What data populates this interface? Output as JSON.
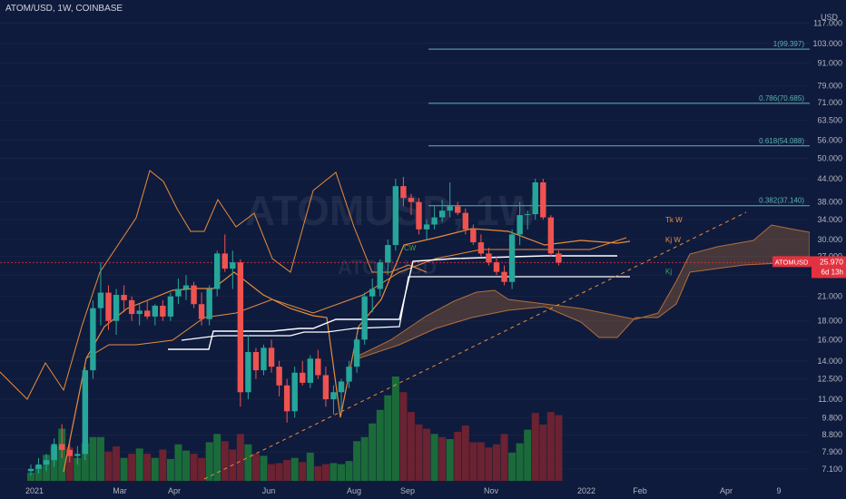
{
  "header": {
    "title": "ATOM/USD, 1W, COINBASE"
  },
  "watermark": {
    "main": "ATOMUSD, 1W",
    "sub": "ATOMUSD"
  },
  "colors": {
    "background": "#0f1b3d",
    "up": "#26a69a",
    "down": "#ef5350",
    "vol_up": "#1b6b3a",
    "vol_down": "#6b2231",
    "orange": "#e88d3a",
    "fib": "#5fb3b3",
    "white": "#ffffff",
    "cloud": "#8a5a3a",
    "price_tag": "#e2323f"
  },
  "chart_data": {
    "type": "candlestick",
    "title": "ATOM/USD, 1W, COINBASE",
    "y_scale": "log",
    "ylim": [
      6.7,
      130
    ],
    "y_ticks": [
      "7.100",
      "7.900",
      "8.800",
      "9.800",
      "11.000",
      "12.500",
      "14.000",
      "16.000",
      "18.000",
      "21.000",
      "24.000",
      "27.000",
      "30.000",
      "34.000",
      "38.000",
      "44.000",
      "50.000",
      "56.000",
      "63.500",
      "71.000",
      "79.000",
      "91.000",
      "103.000",
      "117.000"
    ],
    "x_ticks": [
      "2021",
      "Mar",
      "Apr",
      "Jun",
      "Aug",
      "Sep",
      "Nov",
      "2022",
      "Feb",
      "Apr",
      "9"
    ],
    "currency_label": "USD",
    "candles": [
      {
        "o": 7.0,
        "h": 7.3,
        "l": 6.8,
        "c": 7.1
      },
      {
        "o": 7.1,
        "h": 7.6,
        "l": 6.9,
        "c": 7.3
      },
      {
        "o": 7.3,
        "h": 7.8,
        "l": 7.0,
        "c": 7.5
      },
      {
        "o": 7.5,
        "h": 8.6,
        "l": 7.2,
        "c": 8.3
      },
      {
        "o": 8.3,
        "h": 9.4,
        "l": 7.6,
        "c": 8.0
      },
      {
        "o": 8.0,
        "h": 8.4,
        "l": 7.4,
        "c": 7.7
      },
      {
        "o": 7.7,
        "h": 8.2,
        "l": 7.3,
        "c": 7.8
      },
      {
        "o": 7.8,
        "h": 13.5,
        "l": 7.5,
        "c": 13.2
      },
      {
        "o": 13.2,
        "h": 20.5,
        "l": 12.5,
        "c": 19.5
      },
      {
        "o": 19.5,
        "h": 26.0,
        "l": 17.5,
        "c": 21.5
      },
      {
        "o": 21.5,
        "h": 22.5,
        "l": 17.0,
        "c": 18.0
      },
      {
        "o": 18.0,
        "h": 22.0,
        "l": 16.5,
        "c": 21.2
      },
      {
        "o": 21.2,
        "h": 22.5,
        "l": 19.0,
        "c": 20.5
      },
      {
        "o": 20.5,
        "h": 21.0,
        "l": 18.0,
        "c": 18.8
      },
      {
        "o": 18.8,
        "h": 20.0,
        "l": 17.5,
        "c": 19.2
      },
      {
        "o": 19.2,
        "h": 20.5,
        "l": 18.2,
        "c": 18.5
      },
      {
        "o": 18.5,
        "h": 20.0,
        "l": 17.5,
        "c": 19.8
      },
      {
        "o": 19.8,
        "h": 20.5,
        "l": 18.0,
        "c": 18.5
      },
      {
        "o": 18.5,
        "h": 21.5,
        "l": 18.0,
        "c": 21.0
      },
      {
        "o": 21.0,
        "h": 23.5,
        "l": 20.0,
        "c": 22.0
      },
      {
        "o": 22.0,
        "h": 24.0,
        "l": 20.5,
        "c": 22.5
      },
      {
        "o": 22.5,
        "h": 23.0,
        "l": 19.5,
        "c": 20.0
      },
      {
        "o": 20.0,
        "h": 21.5,
        "l": 17.5,
        "c": 18.2
      },
      {
        "o": 18.2,
        "h": 22.5,
        "l": 17.5,
        "c": 22.0
      },
      {
        "o": 22.0,
        "h": 28.0,
        "l": 21.0,
        "c": 27.5
      },
      {
        "o": 27.5,
        "h": 31.0,
        "l": 24.5,
        "c": 25.0
      },
      {
        "o": 25.0,
        "h": 28.0,
        "l": 22.0,
        "c": 26.0
      },
      {
        "o": 26.0,
        "h": 26.5,
        "l": 10.5,
        "c": 11.5
      },
      {
        "o": 11.5,
        "h": 16.5,
        "l": 11.0,
        "c": 14.8
      },
      {
        "o": 14.8,
        "h": 15.2,
        "l": 12.5,
        "c": 13.2
      },
      {
        "o": 13.2,
        "h": 15.5,
        "l": 12.8,
        "c": 15.2
      },
      {
        "o": 15.2,
        "h": 16.0,
        "l": 13.0,
        "c": 13.5
      },
      {
        "o": 13.5,
        "h": 14.0,
        "l": 11.2,
        "c": 12.0
      },
      {
        "o": 12.0,
        "h": 12.5,
        "l": 9.5,
        "c": 10.2
      },
      {
        "o": 10.2,
        "h": 13.5,
        "l": 9.8,
        "c": 13.0
      },
      {
        "o": 13.0,
        "h": 14.0,
        "l": 12.0,
        "c": 12.2
      },
      {
        "o": 12.2,
        "h": 14.5,
        "l": 11.8,
        "c": 14.2
      },
      {
        "o": 14.2,
        "h": 15.0,
        "l": 12.5,
        "c": 12.8
      },
      {
        "o": 12.8,
        "h": 13.5,
        "l": 10.5,
        "c": 11.0
      },
      {
        "o": 11.0,
        "h": 12.0,
        "l": 10.0,
        "c": 11.5
      },
      {
        "o": 11.5,
        "h": 12.5,
        "l": 10.2,
        "c": 12.3
      },
      {
        "o": 12.3,
        "h": 14.0,
        "l": 11.8,
        "c": 13.5
      },
      {
        "o": 13.5,
        "h": 16.5,
        "l": 13.0,
        "c": 16.0
      },
      {
        "o": 16.0,
        "h": 21.5,
        "l": 15.5,
        "c": 21.0
      },
      {
        "o": 21.0,
        "h": 23.5,
        "l": 19.0,
        "c": 22.0
      },
      {
        "o": 22.0,
        "h": 26.5,
        "l": 21.0,
        "c": 26.0
      },
      {
        "o": 26.0,
        "h": 30.0,
        "l": 24.0,
        "c": 29.0
      },
      {
        "o": 29.0,
        "h": 44.0,
        "l": 28.0,
        "c": 42.0
      },
      {
        "o": 42.0,
        "h": 44.5,
        "l": 37.0,
        "c": 39.0
      },
      {
        "o": 39.0,
        "h": 40.0,
        "l": 35.0,
        "c": 38.0
      },
      {
        "o": 38.0,
        "h": 39.0,
        "l": 31.0,
        "c": 32.0
      },
      {
        "o": 32.0,
        "h": 34.0,
        "l": 30.0,
        "c": 33.0
      },
      {
        "o": 33.0,
        "h": 37.0,
        "l": 32.0,
        "c": 34.5
      },
      {
        "o": 34.5,
        "h": 38.5,
        "l": 33.5,
        "c": 36.0
      },
      {
        "o": 36.0,
        "h": 43.0,
        "l": 34.5,
        "c": 37.0
      },
      {
        "o": 37.0,
        "h": 38.0,
        "l": 35.0,
        "c": 35.5
      },
      {
        "o": 35.5,
        "h": 36.5,
        "l": 31.0,
        "c": 32.0
      },
      {
        "o": 32.0,
        "h": 33.0,
        "l": 29.0,
        "c": 29.5
      },
      {
        "o": 29.5,
        "h": 31.0,
        "l": 27.0,
        "c": 27.5
      },
      {
        "o": 27.5,
        "h": 28.5,
        "l": 25.5,
        "c": 26.0
      },
      {
        "o": 26.0,
        "h": 27.0,
        "l": 24.0,
        "c": 24.5
      },
      {
        "o": 24.5,
        "h": 25.5,
        "l": 22.5,
        "c": 23.0
      },
      {
        "o": 23.0,
        "h": 32.0,
        "l": 22.0,
        "c": 31.0
      },
      {
        "o": 31.0,
        "h": 38.0,
        "l": 29.0,
        "c": 35.0
      },
      {
        "o": 35.0,
        "h": 36.0,
        "l": 32.0,
        "c": 35.2
      },
      {
        "o": 35.2,
        "h": 44.0,
        "l": 34.0,
        "c": 43.0
      },
      {
        "o": 43.0,
        "h": 44.0,
        "l": 34.0,
        "c": 34.5
      },
      {
        "o": 34.5,
        "h": 35.0,
        "l": 27.0,
        "c": 27.5
      },
      {
        "o": 27.5,
        "h": 28.0,
        "l": 25.5,
        "c": 25.97
      }
    ],
    "volumes": [
      {
        "v": 8,
        "up": true
      },
      {
        "v": 14,
        "up": true
      },
      {
        "v": 25,
        "up": true
      },
      {
        "v": 33,
        "up": true
      },
      {
        "v": 50,
        "up": true
      },
      {
        "v": 32,
        "up": false
      },
      {
        "v": 22,
        "up": true
      },
      {
        "v": 36,
        "up": true
      },
      {
        "v": 42,
        "up": true
      },
      {
        "v": 42,
        "up": true
      },
      {
        "v": 28,
        "up": false
      },
      {
        "v": 33,
        "up": false
      },
      {
        "v": 22,
        "up": true
      },
      {
        "v": 26,
        "up": false
      },
      {
        "v": 31,
        "up": true
      },
      {
        "v": 26,
        "up": false
      },
      {
        "v": 22,
        "up": true
      },
      {
        "v": 30,
        "up": false
      },
      {
        "v": 21,
        "up": true
      },
      {
        "v": 35,
        "up": true
      },
      {
        "v": 29,
        "up": true
      },
      {
        "v": 26,
        "up": false
      },
      {
        "v": 22,
        "up": false
      },
      {
        "v": 37,
        "up": true
      },
      {
        "v": 45,
        "up": true
      },
      {
        "v": 38,
        "up": false
      },
      {
        "v": 30,
        "up": false
      },
      {
        "v": 45,
        "up": false
      },
      {
        "v": 35,
        "up": true
      },
      {
        "v": 26,
        "up": false
      },
      {
        "v": 24,
        "up": true
      },
      {
        "v": 16,
        "up": false
      },
      {
        "v": 17,
        "up": false
      },
      {
        "v": 20,
        "up": false
      },
      {
        "v": 22,
        "up": true
      },
      {
        "v": 18,
        "up": false
      },
      {
        "v": 27,
        "up": true
      },
      {
        "v": 14,
        "up": false
      },
      {
        "v": 16,
        "up": false
      },
      {
        "v": 17,
        "up": true
      },
      {
        "v": 16,
        "up": true
      },
      {
        "v": 19,
        "up": true
      },
      {
        "v": 38,
        "up": true
      },
      {
        "v": 42,
        "up": true
      },
      {
        "v": 55,
        "up": true
      },
      {
        "v": 68,
        "up": true
      },
      {
        "v": 82,
        "up": true
      },
      {
        "v": 100,
        "up": true
      },
      {
        "v": 85,
        "up": false
      },
      {
        "v": 66,
        "up": false
      },
      {
        "v": 54,
        "up": false
      },
      {
        "v": 50,
        "up": false
      },
      {
        "v": 45,
        "up": true
      },
      {
        "v": 42,
        "up": false
      },
      {
        "v": 40,
        "up": true
      },
      {
        "v": 47,
        "up": false
      },
      {
        "v": 53,
        "up": false
      },
      {
        "v": 37,
        "up": false
      },
      {
        "v": 37,
        "up": false
      },
      {
        "v": 32,
        "up": false
      },
      {
        "v": 35,
        "up": false
      },
      {
        "v": 45,
        "up": false
      },
      {
        "v": 27,
        "up": true
      },
      {
        "v": 36,
        "up": true
      },
      {
        "v": 49,
        "up": true
      },
      {
        "v": 65,
        "up": false
      },
      {
        "v": 54,
        "up": false
      },
      {
        "v": 66,
        "up": false
      },
      {
        "v": 63,
        "up": false
      }
    ],
    "fib_levels": [
      {
        "label": "1(99.397)",
        "value": 99.397
      },
      {
        "label": "0.786(70.685)",
        "value": 70.685
      },
      {
        "label": "0.618(54.088)",
        "value": 54.088
      },
      {
        "label": "0.382(37.140)",
        "value": 37.14
      }
    ],
    "indicator_labels": [
      {
        "text": "Tk W",
        "value": 33.5
      },
      {
        "text": "Kj W",
        "value": 29.5
      },
      {
        "text": "Kj",
        "value": 24.2
      },
      {
        "text": "CW",
        "value": 28.0
      }
    ],
    "current_price": {
      "label": "ATOMUSD",
      "value": "25.970",
      "countdown": "6d 13h",
      "price": 25.97
    }
  }
}
